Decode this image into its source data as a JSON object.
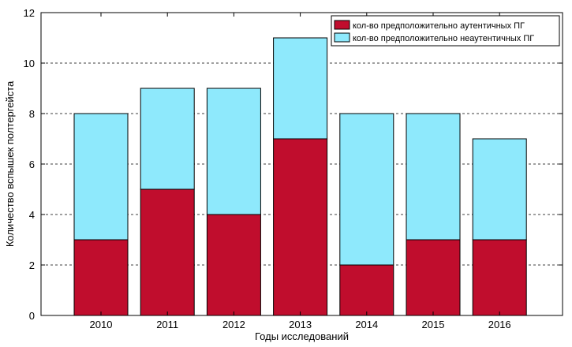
{
  "chart_data": {
    "type": "bar",
    "stacked": true,
    "categories": [
      "2010",
      "2011",
      "2012",
      "2013",
      "2014",
      "2015",
      "2016"
    ],
    "series": [
      {
        "name": "кол-во предположительно аутентичных ПГ",
        "values": [
          3,
          5,
          4,
          7,
          2,
          3,
          3
        ],
        "color": "#c00d2d"
      },
      {
        "name": "кол-во предположительно неаутентичных ПГ",
        "values": [
          5,
          4,
          5,
          4,
          6,
          5,
          4
        ],
        "color": "#8ee9fc"
      }
    ],
    "title": "",
    "xlabel": "Годы исследований",
    "ylabel": "Количество вспышек полтергейста",
    "ylim": [
      0,
      12
    ],
    "yticks": [
      0,
      2,
      4,
      6,
      8,
      10,
      12
    ],
    "grid": "horizontal-dashed",
    "legend_position": "top-right"
  }
}
